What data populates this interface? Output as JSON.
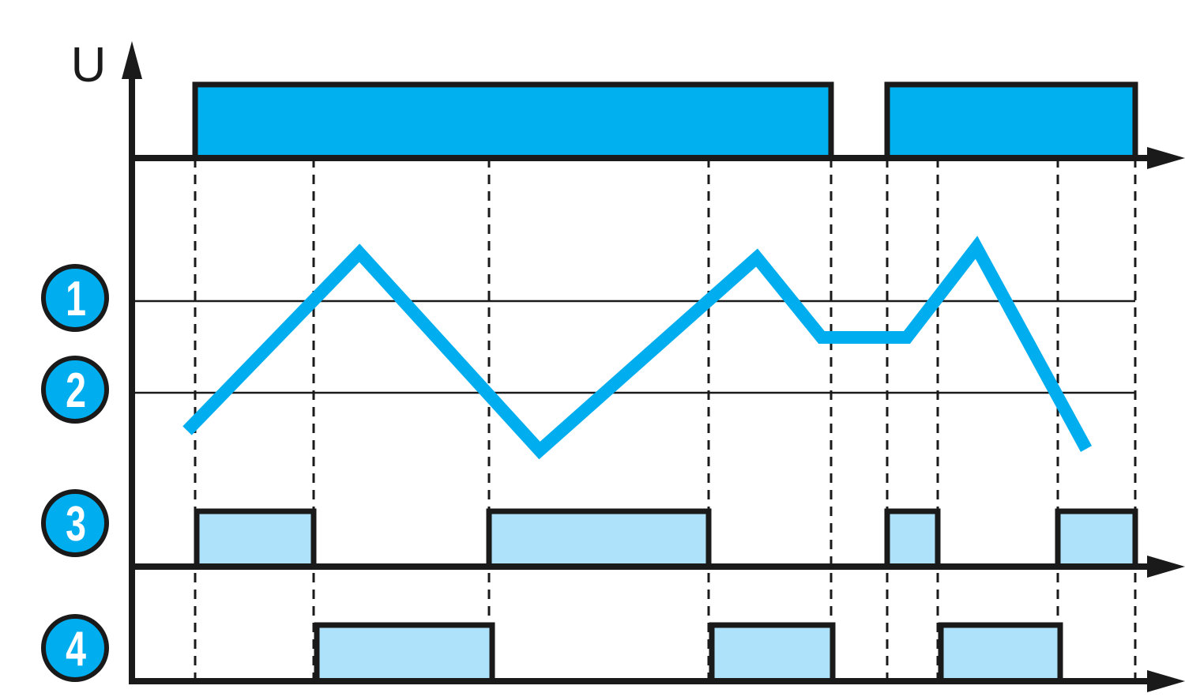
{
  "axis": {
    "y_label": "U"
  },
  "markers": [
    {
      "label": "1"
    },
    {
      "label": "2"
    },
    {
      "label": "3"
    },
    {
      "label": "4"
    }
  ],
  "colors": {
    "supply": "#00b0ef",
    "signal": "#00aeef",
    "relay": "#aee1fa",
    "marker": "#00aeef",
    "line": "#1a1a1a"
  }
}
